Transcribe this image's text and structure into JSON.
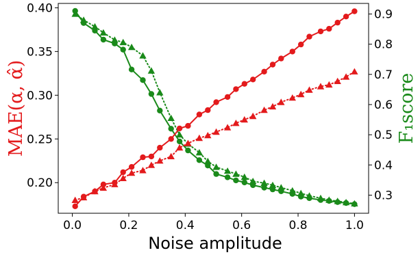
{
  "chart_data": {
    "type": "line",
    "xlabel": "Noise amplitude",
    "ylabel_left": "MAE(α, α̂)",
    "ylabel_right": "F₁score",
    "xlim": [
      -0.05,
      1.05
    ],
    "ylim_left": [
      0.165,
      0.405
    ],
    "ylim_right": [
      0.24,
      0.935
    ],
    "x_ticks": [
      0.0,
      0.2,
      0.4,
      0.6,
      0.8,
      1.0
    ],
    "x_tick_labels": [
      "0.0",
      "0.2",
      "0.4",
      "0.6",
      "0.8",
      "1.0"
    ],
    "y_left_ticks": [
      0.2,
      0.25,
      0.3,
      0.35,
      0.4
    ],
    "y_left_tick_labels": [
      "0.20",
      "0.25",
      "0.30",
      "0.35",
      "0.40"
    ],
    "y_right_ticks": [
      0.3,
      0.4,
      0.5,
      0.6,
      0.7,
      0.8,
      0.9
    ],
    "y_right_tick_labels": [
      "0.3",
      "0.4",
      "0.5",
      "0.6",
      "0.7",
      "0.8",
      "0.9"
    ],
    "grid": false,
    "colors": {
      "mae": "#e31a1c",
      "f1": "#1a8a1a",
      "axis": "#000000"
    },
    "x": [
      0.01,
      0.04,
      0.08,
      0.11,
      0.15,
      0.18,
      0.21,
      0.25,
      0.28,
      0.31,
      0.35,
      0.38,
      0.41,
      0.45,
      0.48,
      0.51,
      0.55,
      0.58,
      0.61,
      0.64,
      0.68,
      0.71,
      0.74,
      0.78,
      0.81,
      0.84,
      0.88,
      0.91,
      0.94,
      0.97,
      1.0
    ],
    "series": [
      {
        "axis": "left",
        "style": "solid",
        "marker": "circle",
        "color": "#e31a1c",
        "values": [
          0.173,
          0.184,
          0.19,
          0.198,
          0.2,
          0.212,
          0.218,
          0.229,
          0.23,
          0.24,
          0.25,
          0.262,
          0.265,
          0.278,
          0.283,
          0.292,
          0.298,
          0.307,
          0.313,
          0.318,
          0.327,
          0.335,
          0.342,
          0.35,
          0.358,
          0.367,
          0.373,
          0.376,
          0.383,
          0.39,
          0.396
        ]
      },
      {
        "axis": "left",
        "style": "dotted",
        "marker": "triangle",
        "color": "#e31a1c",
        "values": [
          0.18,
          0.183,
          0.19,
          0.194,
          0.198,
          0.205,
          0.211,
          0.214,
          0.22,
          0.225,
          0.23,
          0.24,
          0.245,
          0.251,
          0.254,
          0.258,
          0.263,
          0.268,
          0.272,
          0.276,
          0.283,
          0.287,
          0.292,
          0.297,
          0.301,
          0.306,
          0.31,
          0.312,
          0.316,
          0.321,
          0.327
        ]
      },
      {
        "axis": "right",
        "style": "solid",
        "marker": "circle",
        "color": "#1a8a1a",
        "values": [
          0.91,
          0.87,
          0.845,
          0.815,
          0.802,
          0.782,
          0.716,
          0.681,
          0.635,
          0.58,
          0.52,
          0.478,
          0.448,
          0.416,
          0.398,
          0.37,
          0.359,
          0.349,
          0.342,
          0.333,
          0.325,
          0.319,
          0.313,
          0.304,
          0.295,
          0.29,
          0.284,
          0.281,
          0.277,
          0.274,
          0.27
        ]
      },
      {
        "axis": "right",
        "style": "dotted",
        "marker": "triangle",
        "color": "#1a8a1a",
        "values": [
          0.9,
          0.88,
          0.858,
          0.838,
          0.814,
          0.806,
          0.79,
          0.762,
          0.712,
          0.64,
          0.555,
          0.5,
          0.47,
          0.441,
          0.412,
          0.393,
          0.38,
          0.37,
          0.36,
          0.346,
          0.34,
          0.333,
          0.325,
          0.315,
          0.306,
          0.298,
          0.29,
          0.284,
          0.28,
          0.276,
          0.272
        ]
      }
    ]
  }
}
